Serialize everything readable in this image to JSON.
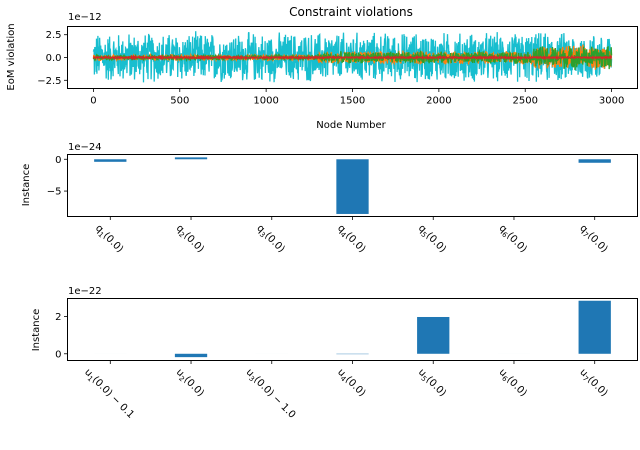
{
  "chart_data": [
    {
      "type": "line",
      "title": "Constraint violations",
      "xlabel": "Node Number",
      "ylabel": "EoM violation",
      "offset_label": "1e−12",
      "xlim": [
        -150,
        3150
      ],
      "ylim": [
        -3.4,
        3.4
      ],
      "scale_exponent": -12,
      "xticks": [
        "0",
        "500",
        "1000",
        "1500",
        "2000",
        "2500",
        "3000"
      ],
      "xtick_values": [
        0,
        500,
        1000,
        1500,
        2000,
        2500,
        3000
      ],
      "yticks": [
        "−2.5",
        "0.0",
        "2.5"
      ],
      "ytick_values": [
        -2.5,
        0,
        2.5
      ],
      "x_range": [
        0,
        3000
      ],
      "series": [
        {
          "color": "#17becf",
          "envelope": [
            {
              "x": [
                0,
                3000
              ],
              "amplitude": 3.0
            }
          ]
        },
        {
          "color": "#ff7f0e",
          "envelope": [
            {
              "x": [
                0,
                1300
              ],
              "amplitude": 0.35
            },
            {
              "x": [
                1300,
                2550
              ],
              "amplitude": 0.8
            },
            {
              "x": [
                2550,
                3000
              ],
              "amplitude": 1.5
            }
          ]
        },
        {
          "color": "#2ca02c",
          "envelope": [
            {
              "x": [
                0,
                1300
              ],
              "amplitude": 0.3
            },
            {
              "x": [
                1300,
                2550
              ],
              "amplitude": 0.7
            },
            {
              "x": [
                2550,
                3000
              ],
              "amplitude": 1.4
            }
          ]
        },
        {
          "color": "#d62728",
          "envelope": [
            {
              "x": [
                0,
                3000
              ],
              "amplitude": 0.1
            }
          ]
        }
      ]
    },
    {
      "type": "bar",
      "ylabel": "Instance",
      "offset_label": "1e−24",
      "scale_exponent": -24,
      "ylim": [
        -9.0,
        0.75
      ],
      "yticks": [
        "−5",
        "0"
      ],
      "ytick_values": [
        -5,
        0
      ],
      "color": "#1f77b4",
      "categories": [
        {
          "sym": "q",
          "sub": "1",
          "arg": "(0.0)"
        },
        {
          "sym": "q",
          "sub": "2",
          "arg": "(0.0)"
        },
        {
          "sym": "q",
          "sub": "3",
          "arg": "(0.0)"
        },
        {
          "sym": "q",
          "sub": "4",
          "arg": "(0.0)"
        },
        {
          "sym": "q",
          "sub": "5",
          "arg": "(0.0)"
        },
        {
          "sym": "q",
          "sub": "6",
          "arg": "(0.0)"
        },
        {
          "sym": "q",
          "sub": "7",
          "arg": "(0.0)"
        }
      ],
      "values": [
        -0.4,
        0.3,
        0.0,
        -8.6,
        0.0,
        0.0,
        -0.55
      ]
    },
    {
      "type": "bar",
      "ylabel": "Instance",
      "offset_label": "1e−22",
      "scale_exponent": -22,
      "ylim": [
        -0.36,
        2.96
      ],
      "yticks": [
        "0",
        "2"
      ],
      "ytick_values": [
        0,
        2
      ],
      "color": "#1f77b4",
      "categories": [
        {
          "sym": "u",
          "sub": "1",
          "arg": "(0.0) − 0.1"
        },
        {
          "sym": "u",
          "sub": "2",
          "arg": "(0.0)"
        },
        {
          "sym": "u",
          "sub": "3",
          "arg": "(0.0) − 1.0"
        },
        {
          "sym": "u",
          "sub": "4",
          "arg": "(0.0)"
        },
        {
          "sym": "u",
          "sub": "5",
          "arg": "(0.0)"
        },
        {
          "sym": "u",
          "sub": "6",
          "arg": "(0.0)"
        },
        {
          "sym": "u",
          "sub": "7",
          "arg": "(0.0)"
        }
      ],
      "values": [
        0.0,
        -0.18,
        0.0,
        -0.02,
        1.97,
        0.0,
        2.84
      ]
    }
  ]
}
